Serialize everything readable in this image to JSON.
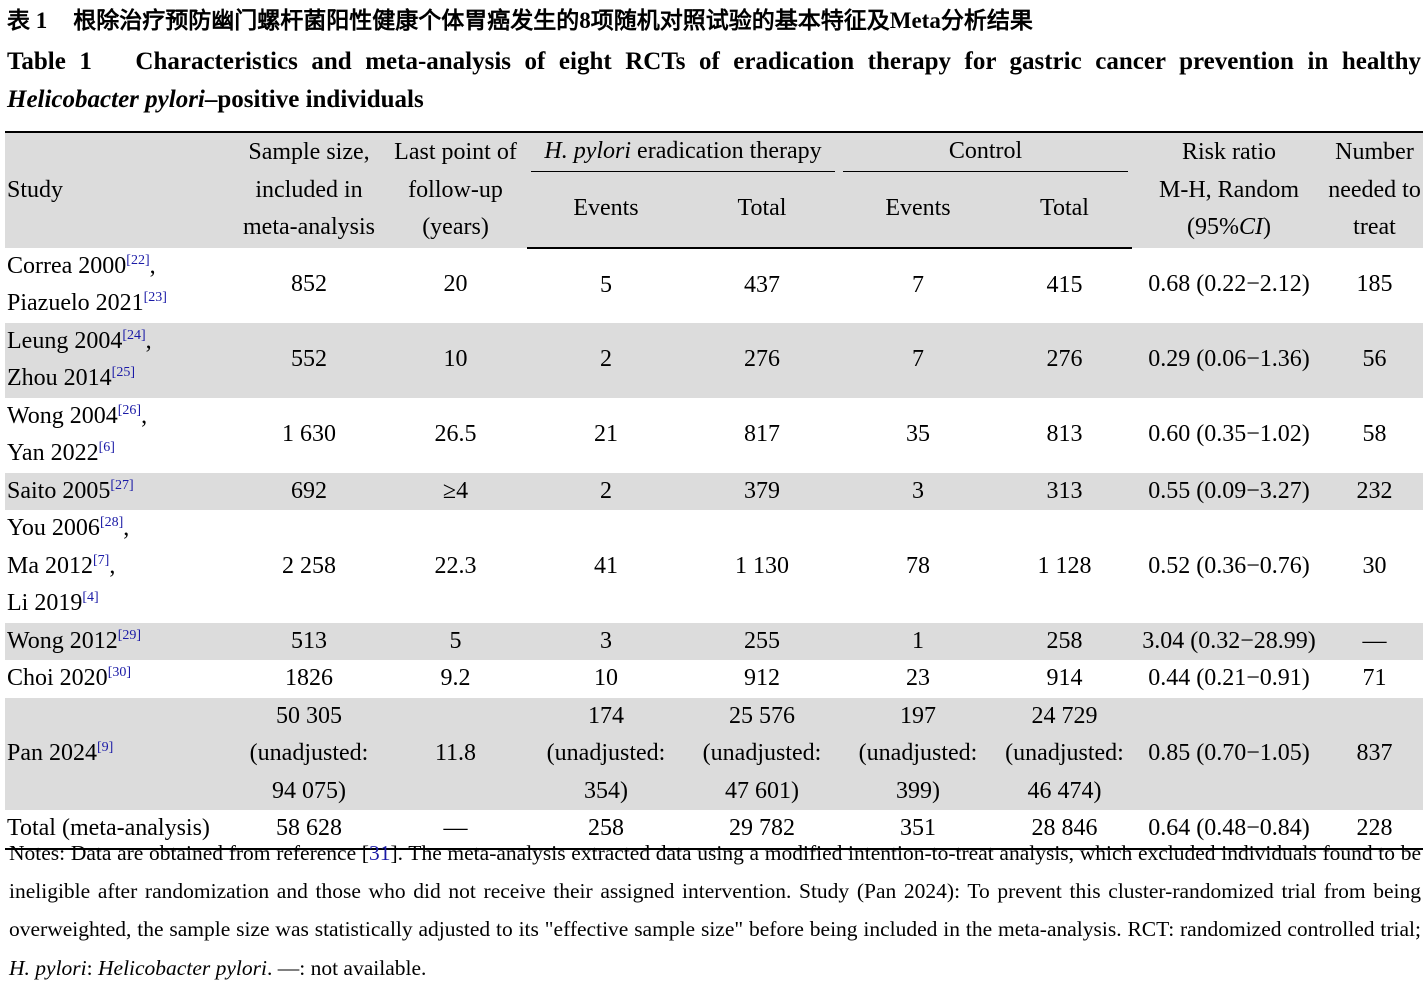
{
  "caption": {
    "zh": {
      "label": "表 1",
      "text": "根除治疗预防幽门螺杆菌阳性健康个体胃癌发生的8项随机对照试验的基本特征及Meta分析结果"
    },
    "en": {
      "label": "Table 1",
      "segments": [
        {
          "text": "Characteristics and meta-analysis of eight RCTs of eradication therapy for gastric cancer prevention in healthy "
        },
        {
          "text": "Helicobacter pylori",
          "italic": true
        },
        {
          "text": "–positive individuals"
        }
      ]
    }
  },
  "table": {
    "header": {
      "study": "Study",
      "sample": [
        "Sample size,",
        "included in",
        "meta-analysis"
      ],
      "followup": [
        "Last point of",
        "follow-up",
        "(years)"
      ],
      "treatment_group": [
        [
          {
            "text": "H. pylori",
            "italic": true
          },
          {
            "text": " eradication therapy"
          }
        ]
      ],
      "control_group": "Control",
      "sub": [
        "Events",
        "Total",
        "Events",
        "Total"
      ],
      "risk_ratio": [
        "Risk ratio",
        "M-H, Random",
        [
          {
            "text": "(95%"
          },
          {
            "text": "CI",
            "italic": true
          },
          {
            "text": ")"
          }
        ]
      ],
      "nnt": [
        "Number",
        "needed to",
        "treat"
      ]
    },
    "rows": [
      {
        "study": [
          {
            "name": "Correa 2000",
            "ref": "[22]",
            "sep": ","
          },
          {
            "name": "Piazuelo 2021",
            "ref": "[23]"
          }
        ],
        "cells": [
          "852",
          "20",
          "5",
          "437",
          "7",
          "415",
          "0.68 (0.22−2.12)",
          "185"
        ]
      },
      {
        "study": [
          {
            "name": "Leung 2004",
            "ref": "[24]",
            "sep": ","
          },
          {
            "name": "Zhou 2014",
            "ref": "[25]"
          }
        ],
        "cells": [
          "552",
          "10",
          "2",
          "276",
          "7",
          "276",
          "0.29 (0.06−1.36)",
          "56"
        ]
      },
      {
        "study": [
          {
            "name": "Wong 2004",
            "ref": "[26]",
            "sep": ","
          },
          {
            "name": "Yan 2022",
            "ref": "[6]"
          }
        ],
        "cells": [
          "1 630",
          "26.5",
          "21",
          "817",
          "35",
          "813",
          "0.60 (0.35−1.02)",
          "58"
        ]
      },
      {
        "study": [
          {
            "name": "Saito 2005",
            "ref": "[27]"
          }
        ],
        "cells": [
          "692",
          "≥4",
          "2",
          "379",
          "3",
          "313",
          "0.55 (0.09−3.27)",
          "232"
        ]
      },
      {
        "study": [
          {
            "name": "You 2006",
            "ref": "[28]",
            "sep": ","
          },
          {
            "name": "Ma 2012",
            "ref": "[7]",
            "sep": ","
          },
          {
            "name": "Li 2019",
            "ref": "[4]"
          }
        ],
        "cells": [
          "2 258",
          "22.3",
          "41",
          "1 130",
          "78",
          "1 128",
          "0.52 (0.36−0.76)",
          "30"
        ]
      },
      {
        "study": [
          {
            "name": "Wong 2012",
            "ref": "[29]"
          }
        ],
        "cells": [
          "513",
          "5",
          "3",
          "255",
          "1",
          "258",
          "3.04 (0.32−28.99)",
          "—"
        ]
      },
      {
        "study": [
          {
            "name": "Choi 2020",
            "ref": "[30]"
          }
        ],
        "cells": [
          "1826",
          "9.2",
          "10",
          "912",
          "23",
          "914",
          "0.44 (0.21−0.91)",
          "71"
        ]
      },
      {
        "study": [
          {
            "name": "Pan 2024",
            "ref": "[9]"
          }
        ],
        "cells": [
          [
            "50 305",
            "(unadjusted:",
            "94 075)"
          ],
          "11.8",
          [
            "174",
            "(unadjusted:",
            "354)"
          ],
          [
            "25 576",
            "(unadjusted:",
            "47 601)"
          ],
          [
            "197",
            "(unadjusted:",
            "399)"
          ],
          [
            "24 729",
            "(unadjusted:",
            "46 474)"
          ],
          "0.85 (0.70−1.05)",
          "837"
        ]
      },
      {
        "study": [
          {
            "name": "Total (meta-analysis)"
          }
        ],
        "cells": [
          "58 628",
          "—",
          "258",
          "29 782",
          "351",
          "28 846",
          "0.64 (0.48−0.84)",
          "228"
        ]
      }
    ]
  },
  "notes": [
    {
      "text": "Notes: Data are obtained from reference ["
    },
    {
      "text": "31",
      "link": true
    },
    {
      "text": "]. The meta-analysis extracted data using a modified intention-to-treat analysis, which excluded individuals found to be ineligible after randomization and those who did not receive their assigned intervention. Study (Pan 2024): To prevent this cluster-randomized trial from being overweighted, the sample size was statistically adjusted to its \"effective sample size\" before being included in the meta-analysis. RCT: randomized controlled trial; "
    },
    {
      "text": "H. pylori",
      "italic": true
    },
    {
      "text": ": "
    },
    {
      "text": "Helicobacter pylori",
      "italic": true
    },
    {
      "text": ". —: not available."
    }
  ]
}
